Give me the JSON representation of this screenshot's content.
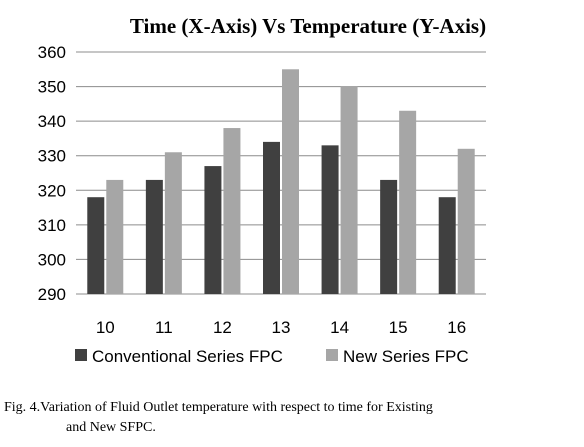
{
  "chart_data": {
    "type": "bar",
    "title": "Time (X-Axis) Vs Temperature (Y-Axis)",
    "xlabel": "",
    "ylabel": "",
    "categories": [
      "10",
      "11",
      "12",
      "13",
      "14",
      "15",
      "16"
    ],
    "series": [
      {
        "name": "Conventional Series FPC",
        "values": [
          318,
          323,
          327,
          334,
          333,
          323,
          318
        ],
        "color": "#404040"
      },
      {
        "name": "New Series FPC",
        "values": [
          323,
          331,
          338,
          355,
          350,
          343,
          332
        ],
        "color": "#a6a6a6"
      }
    ],
    "ylim": [
      290,
      360
    ],
    "yticks": [
      290,
      300,
      310,
      320,
      330,
      340,
      350,
      360
    ],
    "grid": true,
    "legend": "bottom"
  },
  "caption": {
    "line1": "Fig. 4.Variation of Fluid Outlet temperature with respect to time for Existing",
    "line2": "and New SFPC."
  },
  "colors": {
    "grid": "#8c8c8c",
    "axis": "#8c8c8c"
  }
}
